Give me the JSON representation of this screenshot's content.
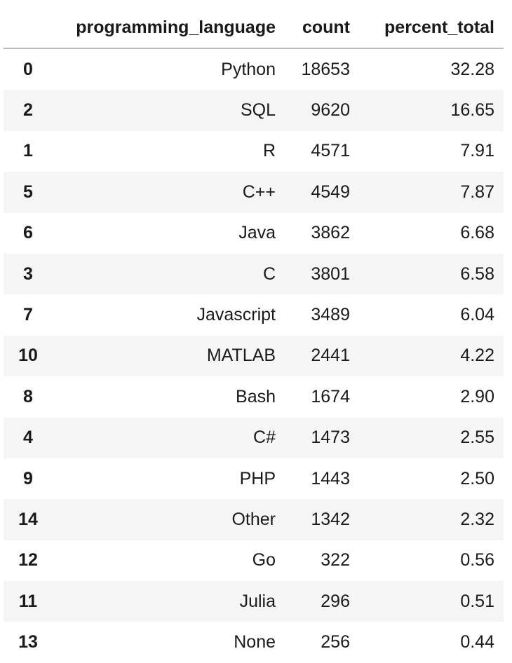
{
  "table": {
    "columns": [
      "",
      "programming_language",
      "count",
      "percent_total"
    ],
    "rows": [
      {
        "index": "0",
        "programming_language": "Python",
        "count": "18653",
        "percent_total": "32.28"
      },
      {
        "index": "2",
        "programming_language": "SQL",
        "count": "9620",
        "percent_total": "16.65"
      },
      {
        "index": "1",
        "programming_language": "R",
        "count": "4571",
        "percent_total": "7.91"
      },
      {
        "index": "5",
        "programming_language": "C++",
        "count": "4549",
        "percent_total": "7.87"
      },
      {
        "index": "6",
        "programming_language": "Java",
        "count": "3862",
        "percent_total": "6.68"
      },
      {
        "index": "3",
        "programming_language": "C",
        "count": "3801",
        "percent_total": "6.58"
      },
      {
        "index": "7",
        "programming_language": "Javascript",
        "count": "3489",
        "percent_total": "6.04"
      },
      {
        "index": "10",
        "programming_language": "MATLAB",
        "count": "2441",
        "percent_total": "4.22"
      },
      {
        "index": "8",
        "programming_language": "Bash",
        "count": "1674",
        "percent_total": "2.90"
      },
      {
        "index": "4",
        "programming_language": "C#",
        "count": "1473",
        "percent_total": "2.55"
      },
      {
        "index": "9",
        "programming_language": "PHP",
        "count": "1443",
        "percent_total": "2.50"
      },
      {
        "index": "14",
        "programming_language": "Other",
        "count": "1342",
        "percent_total": "2.32"
      },
      {
        "index": "12",
        "programming_language": "Go",
        "count": "322",
        "percent_total": "0.56"
      },
      {
        "index": "11",
        "programming_language": "Julia",
        "count": "296",
        "percent_total": "0.51"
      },
      {
        "index": "13",
        "programming_language": "None",
        "count": "256",
        "percent_total": "0.44"
      }
    ]
  }
}
